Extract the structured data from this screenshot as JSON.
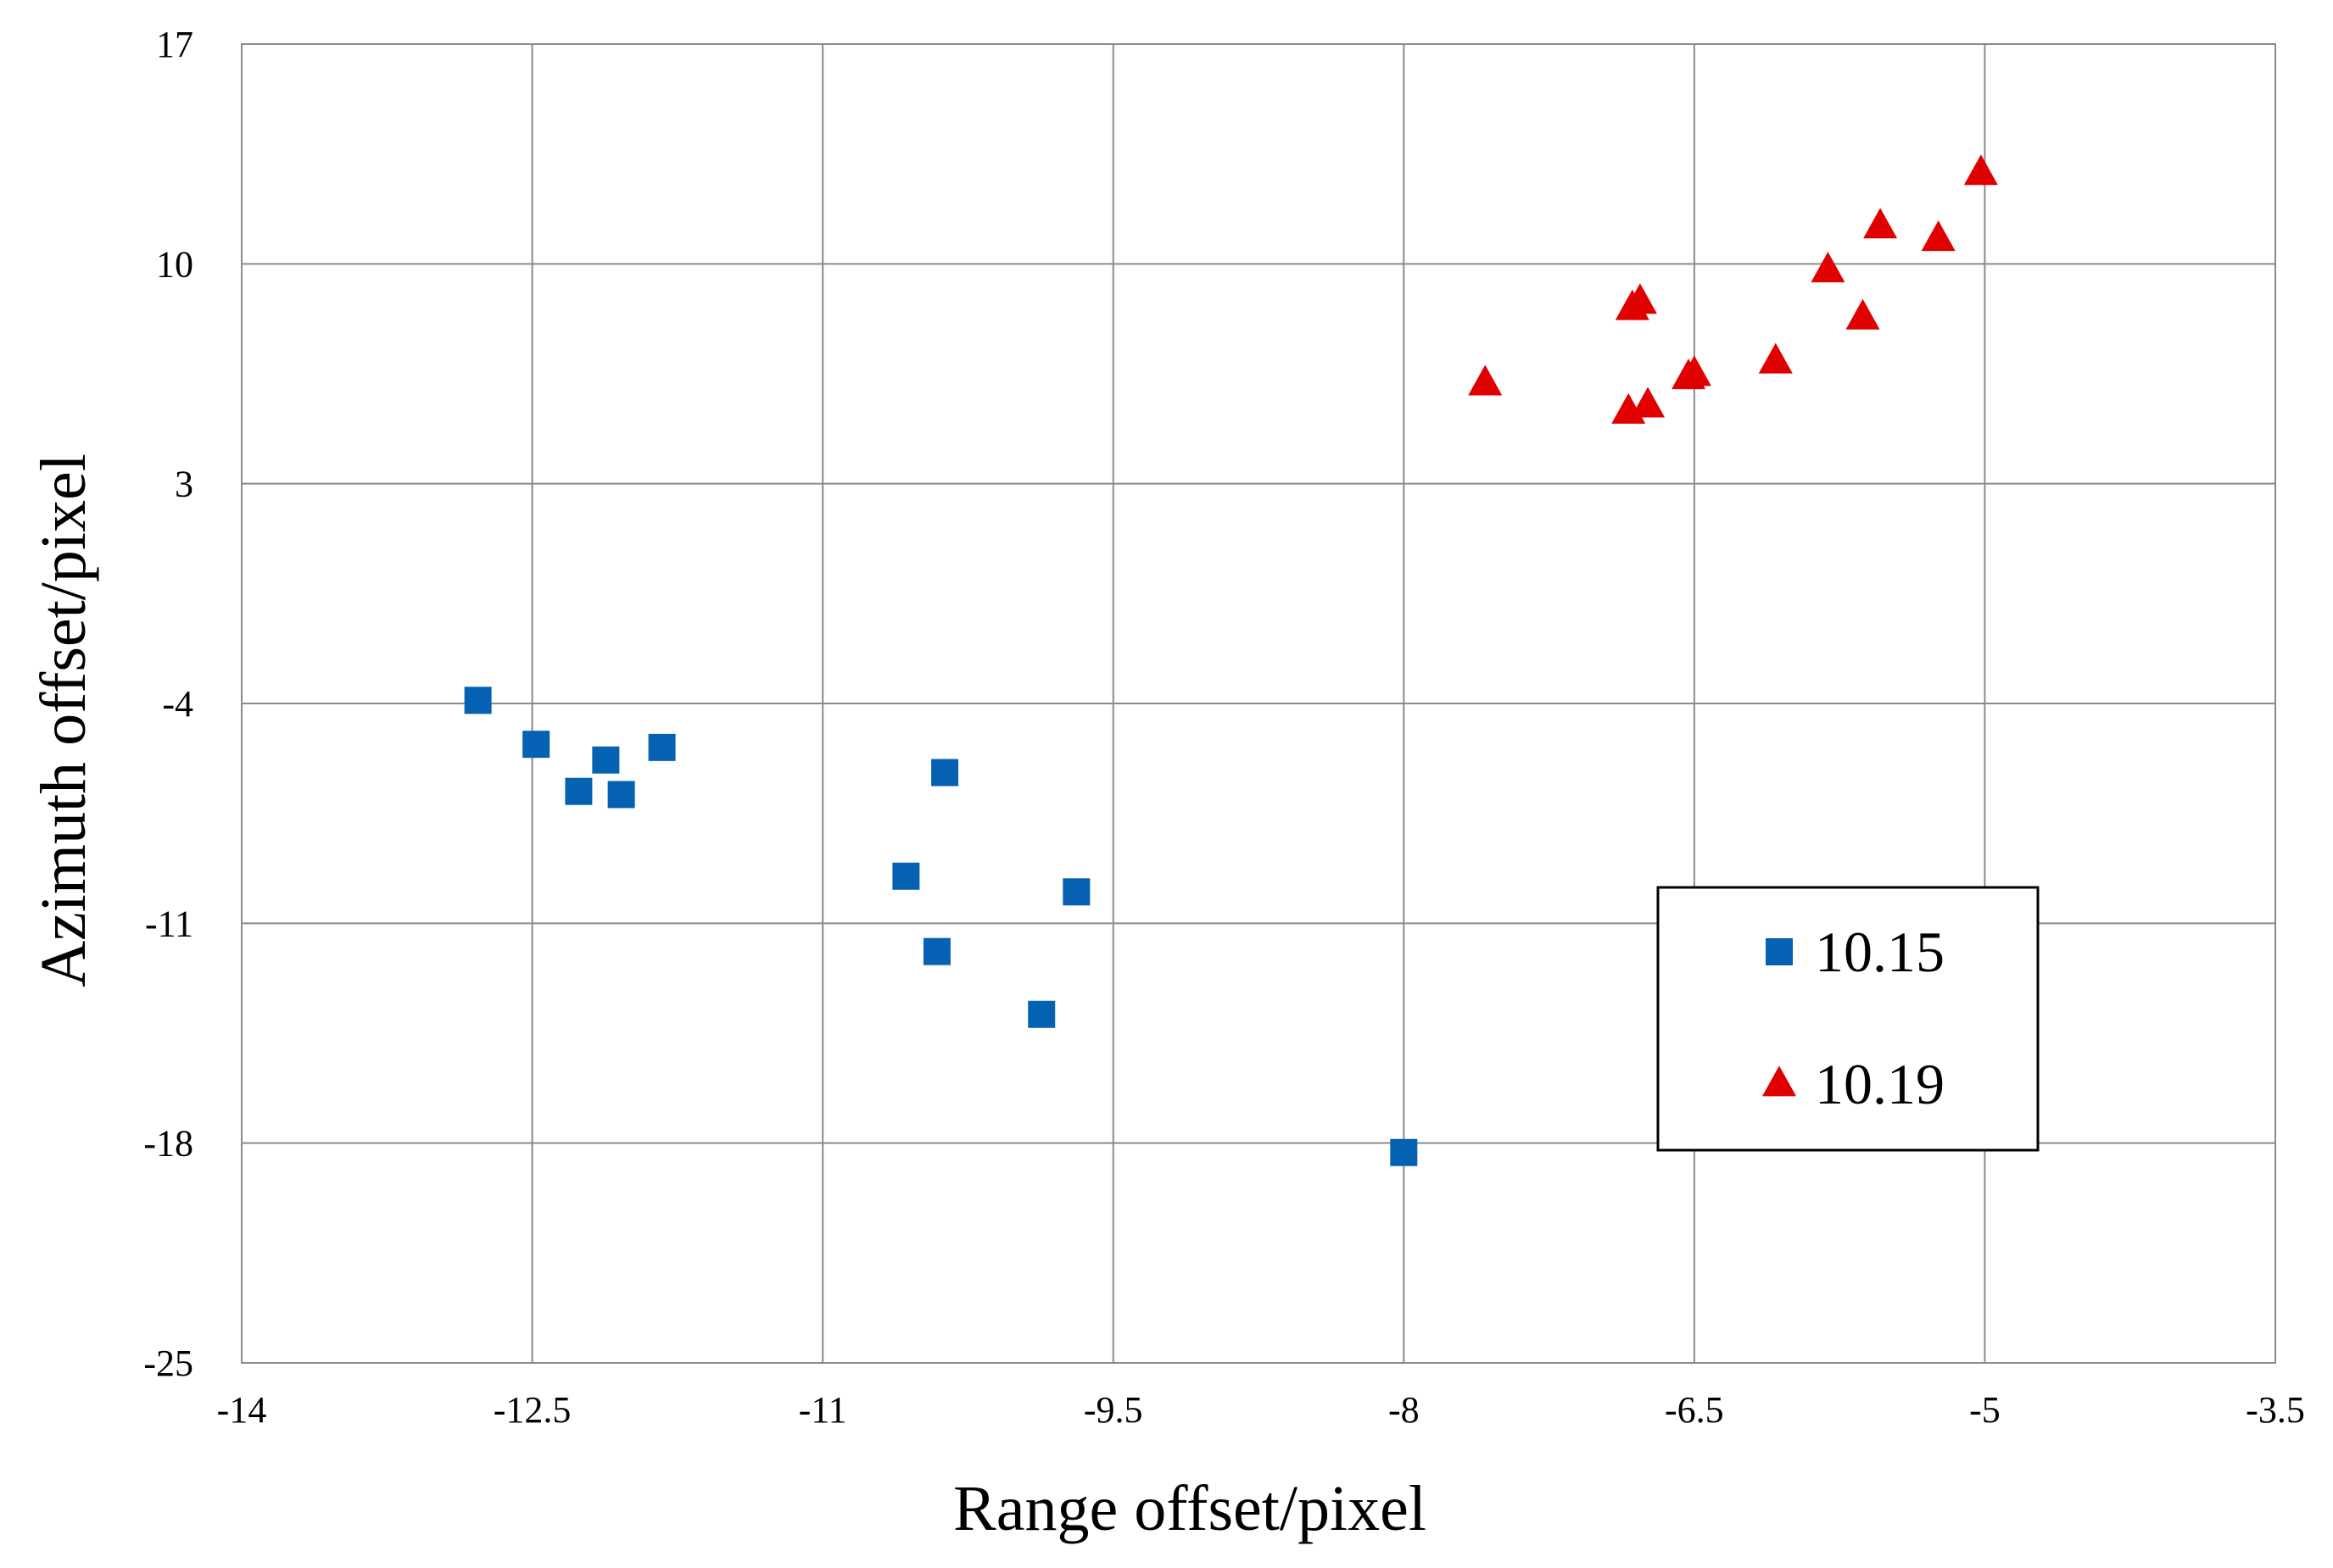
{
  "chart_data": {
    "type": "scatter",
    "title": "",
    "xlabel": "Range offset/pixel",
    "ylabel": "Azimuth offset/pixel",
    "xlim": [
      -14,
      -3.5
    ],
    "ylim": [
      -25,
      17
    ],
    "xticks": [
      -14,
      -12.5,
      -11,
      -9.5,
      -8,
      -6.5,
      -5,
      -3.5
    ],
    "yticks": [
      -25,
      -18,
      -11,
      -4,
      3,
      10,
      17
    ],
    "xtick_labels": [
      "-14",
      "-12.5",
      "-11",
      "-9.5",
      "-8",
      "-6.5",
      "-5",
      "-3.5"
    ],
    "ytick_labels": [
      "-25",
      "-18",
      "-11",
      "-4",
      "3",
      "10",
      "17"
    ],
    "grid": true,
    "legend_position": "right",
    "series": [
      {
        "name": "10.15",
        "marker": "square",
        "color": "#0562b3",
        "points": [
          {
            "x": -12.78,
            "y": -3.9
          },
          {
            "x": -12.48,
            "y": -5.3
          },
          {
            "x": -12.26,
            "y": -6.8
          },
          {
            "x": -12.12,
            "y": -5.8
          },
          {
            "x": -12.04,
            "y": -6.9
          },
          {
            "x": -11.83,
            "y": -5.4
          },
          {
            "x": -10.57,
            "y": -9.5
          },
          {
            "x": -10.41,
            "y": -11.9
          },
          {
            "x": -10.37,
            "y": -6.2
          },
          {
            "x": -9.87,
            "y": -13.9
          },
          {
            "x": -9.69,
            "y": -10.0
          },
          {
            "x": -8.0,
            "y": -18.3
          }
        ]
      },
      {
        "name": "10.19",
        "marker": "triangle",
        "color": "#e00000",
        "points": [
          {
            "x": -7.58,
            "y": 6.2
          },
          {
            "x": -6.84,
            "y": 5.3
          },
          {
            "x": -6.82,
            "y": 8.6
          },
          {
            "x": -6.78,
            "y": 8.8
          },
          {
            "x": -6.74,
            "y": 5.5
          },
          {
            "x": -6.53,
            "y": 6.4
          },
          {
            "x": -6.5,
            "y": 6.5
          },
          {
            "x": -6.08,
            "y": 6.9
          },
          {
            "x": -5.81,
            "y": 9.8
          },
          {
            "x": -5.63,
            "y": 8.3
          },
          {
            "x": -5.54,
            "y": 11.2
          },
          {
            "x": -5.24,
            "y": 10.8
          },
          {
            "x": -5.02,
            "y": 12.9
          }
        ]
      }
    ]
  }
}
